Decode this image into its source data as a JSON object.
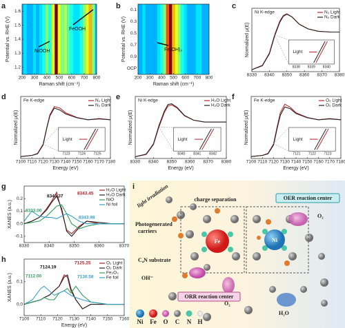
{
  "chart_data": [
    {
      "type": "heatmap",
      "panel_label": "a",
      "xlabel": "Raman shift (cm⁻¹)",
      "ylabel": "Potential vs. RHE (V)",
      "xlim": [
        200,
        800
      ],
      "xticks": [
        200,
        300,
        400,
        500,
        600,
        700,
        800
      ],
      "ylim": [
        1.15,
        1.65
      ],
      "yticks": [
        1.2,
        1.3,
        1.4,
        1.5,
        1.6
      ],
      "x": [
        200,
        225,
        250,
        275,
        300,
        325,
        350,
        375,
        400,
        425,
        450,
        475,
        500,
        525,
        550,
        575,
        600,
        625,
        650,
        675,
        700,
        725,
        750,
        775,
        800
      ],
      "intensity": [
        0.3,
        0.35,
        0.3,
        0.3,
        0.35,
        0.3,
        0.35,
        0.4,
        0.5,
        0.4,
        0.6,
        1.0,
        0.6,
        0.5,
        0.55,
        0.45,
        0.4,
        0.35,
        0.35,
        0.4,
        0.5,
        0.6,
        0.7,
        0.5,
        0.3
      ],
      "annotations": [
        {
          "text": "FeOOH",
          "color": "#111111"
        },
        {
          "text": "NiOOH",
          "color": "#111111"
        }
      ]
    },
    {
      "type": "heatmap",
      "panel_label": "b",
      "xlabel": "Raman shift (cm⁻¹)",
      "ylabel": "Potential vs. RHE (V)",
      "xlim": [
        200,
        800
      ],
      "xticks": [
        200,
        300,
        400,
        500,
        600,
        700,
        800
      ],
      "ycategories": [
        "0.1",
        "0.3",
        "0.5",
        "0.7",
        "0.9",
        "OCP"
      ],
      "x": [
        200,
        225,
        250,
        275,
        300,
        325,
        350,
        375,
        400,
        425,
        450,
        475,
        500,
        525,
        550,
        575,
        600,
        625,
        650,
        675,
        700,
        725,
        750,
        775,
        800
      ],
      "intensity": [
        0.3,
        0.3,
        0.35,
        0.3,
        0.3,
        0.3,
        0.3,
        0.35,
        0.4,
        0.5,
        0.8,
        1.0,
        0.7,
        0.6,
        0.5,
        0.4,
        0.35,
        0.3,
        0.3,
        0.3,
        0.35,
        0.35,
        0.3,
        0.3,
        0.3
      ],
      "annotations": [
        {
          "text": "Fe(OH)₂",
          "color": "#111111"
        }
      ]
    },
    {
      "type": "line",
      "panel_label": "c",
      "title": "Ni K-edge",
      "ylabel": "Normalized μ(E)",
      "xlim": [
        8330,
        8380
      ],
      "xticks": [
        8330,
        8340,
        8350,
        8360,
        8370,
        8380
      ],
      "ylim": [
        0,
        1.6
      ],
      "x": [
        8330,
        8336,
        8340,
        8343,
        8346,
        8348,
        8350,
        8353,
        8357,
        8362,
        8368,
        8375,
        8380
      ],
      "series": [
        {
          "name": "N₂ Light",
          "color": "#c0272d",
          "values": [
            0.05,
            0.16,
            0.47,
            0.93,
            1.28,
            1.42,
            1.46,
            1.38,
            1.2,
            1.08,
            1.02,
            1.0,
            1.0
          ]
        },
        {
          "name": "N₂ Dark",
          "color": "#222222",
          "values": [
            0.05,
            0.15,
            0.45,
            0.9,
            1.25,
            1.4,
            1.45,
            1.38,
            1.2,
            1.08,
            1.02,
            1.0,
            1.0
          ]
        }
      ],
      "inset": {
        "xticks": [
          8338,
          8339,
          8340
        ],
        "text": "Light"
      }
    },
    {
      "type": "line",
      "panel_label": "d",
      "title": "Fe K-edge",
      "ylabel": "Normalized μ(E)",
      "xlabel": "Energy (eV)",
      "xlim": [
        7100,
        7180
      ],
      "xticks": [
        7100,
        7110,
        7120,
        7130,
        7140,
        7150,
        7160,
        7170,
        7180
      ],
      "ylim": [
        0,
        1.6
      ],
      "x": [
        7100,
        7110,
        7115,
        7120,
        7123,
        7126,
        7130,
        7135,
        7140,
        7150,
        7160,
        7170,
        7180
      ],
      "series": [
        {
          "name": "N₂ Light",
          "color": "#c0272d",
          "values": [
            0.05,
            0.08,
            0.13,
            0.37,
            0.77,
            1.13,
            1.34,
            1.3,
            1.18,
            1.06,
            1.0,
            1.03,
            1.0
          ]
        },
        {
          "name": "N₂ Dark",
          "color": "#222222",
          "values": [
            0.05,
            0.08,
            0.12,
            0.35,
            0.75,
            1.1,
            1.3,
            1.25,
            1.15,
            1.05,
            1.0,
            1.02,
            1.0
          ]
        }
      ],
      "inset": {
        "xticks": [
          7123,
          7124,
          7125
        ],
        "text": "Light"
      }
    },
    {
      "type": "line",
      "panel_label": "e",
      "title": "Ni K-edge",
      "ylabel": "Normalized μ(E)",
      "xlabel": "Energy (eV)",
      "xlim": [
        8330,
        8380
      ],
      "xticks": [
        8330,
        8340,
        8350,
        8360,
        8370,
        8380
      ],
      "ylim": [
        0,
        1.7
      ],
      "x": [
        8330,
        8336,
        8340,
        8343,
        8346,
        8348,
        8350,
        8353,
        8357,
        8362,
        8368,
        8375,
        8380
      ],
      "series": [
        {
          "name": "H₂O Light",
          "color": "#c0272d",
          "values": [
            0.05,
            0.11,
            0.38,
            0.86,
            1.26,
            1.44,
            1.47,
            1.38,
            1.17,
            1.05,
            1.0,
            1.0,
            1.0
          ]
        },
        {
          "name": "H₂O Dark",
          "color": "#222222",
          "values": [
            0.05,
            0.12,
            0.4,
            0.9,
            1.3,
            1.48,
            1.5,
            1.4,
            1.18,
            1.05,
            1.0,
            1.0,
            1.0
          ]
        }
      ],
      "inset": {
        "xticks": [
          8340,
          8341,
          8342
        ],
        "text": "Light"
      }
    },
    {
      "type": "line",
      "panel_label": "f",
      "title": "Fe K-edge",
      "ylabel": "Normalized μ(E)",
      "xlabel": "Energy (eV)",
      "xlim": [
        7100,
        7180
      ],
      "xticks": [
        7100,
        7110,
        7120,
        7130,
        7140,
        7150,
        7160,
        7170,
        7180
      ],
      "ylim": [
        0,
        1.6
      ],
      "x": [
        7100,
        7110,
        7115,
        7120,
        7123,
        7126,
        7130,
        7135,
        7140,
        7150,
        7160,
        7170,
        7180
      ],
      "series": [
        {
          "name": "O₂ Light",
          "color": "#c0272d",
          "values": [
            0.05,
            0.08,
            0.13,
            0.38,
            0.8,
            1.18,
            1.4,
            1.32,
            1.18,
            1.06,
            1.0,
            1.03,
            1.0
          ]
        },
        {
          "name": "O₂ Dark",
          "color": "#222222",
          "values": [
            0.05,
            0.08,
            0.12,
            0.35,
            0.75,
            1.12,
            1.33,
            1.28,
            1.16,
            1.05,
            1.0,
            1.02,
            1.0
          ]
        }
      ],
      "inset": {
        "xticks": [
          7121,
          7122,
          7123
        ],
        "text": "Light"
      }
    },
    {
      "type": "line",
      "panel_label": "g",
      "ylabel": "XANES (a.u.)",
      "xlim": [
        8330,
        8370
      ],
      "xticks": [
        8330,
        8340,
        8350,
        8360,
        8370
      ],
      "ylim": [
        -0.15,
        0.3
      ],
      "yticks": [
        -0.1,
        {
          "value": 0,
          "label": "0.0"
        },
        0.1,
        0.2
      ],
      "x": [
        8330,
        8333,
        8336,
        8339,
        8341,
        8343,
        8345,
        8347,
        8349,
        8352,
        8355,
        8360,
        8365,
        8370
      ],
      "series": [
        {
          "name": "H₂O Light",
          "color": "#b01e24",
          "values": [
            0,
            0.02,
            0.05,
            0.12,
            0.18,
            0.25,
            0.1,
            -0.05,
            -0.08,
            -0.02,
            0.02,
            0,
            0,
            0
          ]
        },
        {
          "name": "H₂O Dark",
          "color": "#222222",
          "values": [
            0,
            0.02,
            0.05,
            0.11,
            0.17,
            0.22,
            0.12,
            -0.06,
            -0.1,
            -0.03,
            0.02,
            0.01,
            0,
            0
          ]
        },
        {
          "name": "NiO",
          "color": "#2e9e5b",
          "values": [
            0,
            0.01,
            0.02,
            0.06,
            0.1,
            0.14,
            0.15,
            0.08,
            0.0,
            -0.04,
            -0.02,
            0,
            0,
            0
          ]
        },
        {
          "name": "Ni foil",
          "color": "#3a9fc8",
          "values": [
            0.02,
            0.1,
            0.06,
            0.05,
            0.05,
            0.04,
            0.06,
            0.08,
            0.06,
            0.02,
            0.0,
            0.0,
            0.0,
            0.0
          ]
        }
      ],
      "annotations": [
        {
          "text": "8343.37",
          "color": "#111111"
        },
        {
          "text": "8343.45",
          "color": "#b01e24"
        },
        {
          "text": "8333.00",
          "color": "#2e9e5b"
        },
        {
          "text": "8343.98",
          "color": "#3a9fc8"
        }
      ]
    },
    {
      "type": "line",
      "panel_label": "h",
      "ylabel": "XANES (a.u.)",
      "xlabel": "Energy (eV)",
      "xlim": [
        7100,
        7160
      ],
      "xticks": [
        7100,
        7110,
        7120,
        7130,
        7140,
        7150,
        7160
      ],
      "ylim": [
        -0.05,
        0.2
      ],
      "yticks": [
        {
          "value": 0,
          "label": "0.0"
        },
        0.1
      ],
      "x": [
        7100,
        7105,
        7110,
        7112,
        7115,
        7118,
        7121,
        7124,
        7126,
        7128,
        7131,
        7135,
        7140,
        7150,
        7160
      ],
      "series": [
        {
          "name": "O₂ Light",
          "color": "#b01e24",
          "values": [
            0,
            0.01,
            0.02,
            0.03,
            0.04,
            0.06,
            0.08,
            0.13,
            0.12,
            0.06,
            0.02,
            -0.02,
            0.0,
            0,
            0
          ]
        },
        {
          "name": "O₂ Dark",
          "color": "#222222",
          "values": [
            0,
            0.01,
            0.02,
            0.03,
            0.04,
            0.06,
            0.08,
            0.12,
            0.13,
            0.07,
            0.02,
            -0.02,
            0,
            0,
            0
          ]
        },
        {
          "name": "Fe₂O₃",
          "color": "#2e9e5b",
          "values": [
            0,
            0.01,
            0.02,
            0.03,
            0.02,
            0.02,
            0.05,
            0.06,
            0.07,
            0.05,
            0.08,
            0.04,
            0.01,
            0,
            0
          ]
        },
        {
          "name": "Fe foil",
          "color": "#3a9fc8",
          "values": [
            0,
            0.02,
            0.07,
            0.08,
            0.06,
            0.04,
            0.05,
            0.06,
            0.05,
            0.04,
            0.03,
            0.02,
            0.01,
            0,
            0
          ]
        }
      ],
      "annotations": [
        {
          "text": "7124.19",
          "color": "#111111"
        },
        {
          "text": "7125.25",
          "color": "#b01e24"
        },
        {
          "text": "7112.00",
          "color": "#2e9e5b"
        },
        {
          "text": "7130.58",
          "color": "#3a9fc8"
        }
      ]
    }
  ],
  "diagram": {
    "panel_label": "i",
    "light": "light irradiation",
    "charge": "charge separation",
    "oer": "OER reaction center",
    "carriers": [
      "Photogenerated",
      "carriers"
    ],
    "substrate": "C₄N substrate",
    "oh": "OH⁻",
    "orr": "ORR reaction center",
    "o2_left": "O₂",
    "o2_right": "O₂",
    "h2o": "H₂O",
    "fe": "Fe",
    "ni": "Ni",
    "legend": [
      "Ni",
      "Fe",
      "O",
      "C",
      "N",
      "H"
    ]
  }
}
